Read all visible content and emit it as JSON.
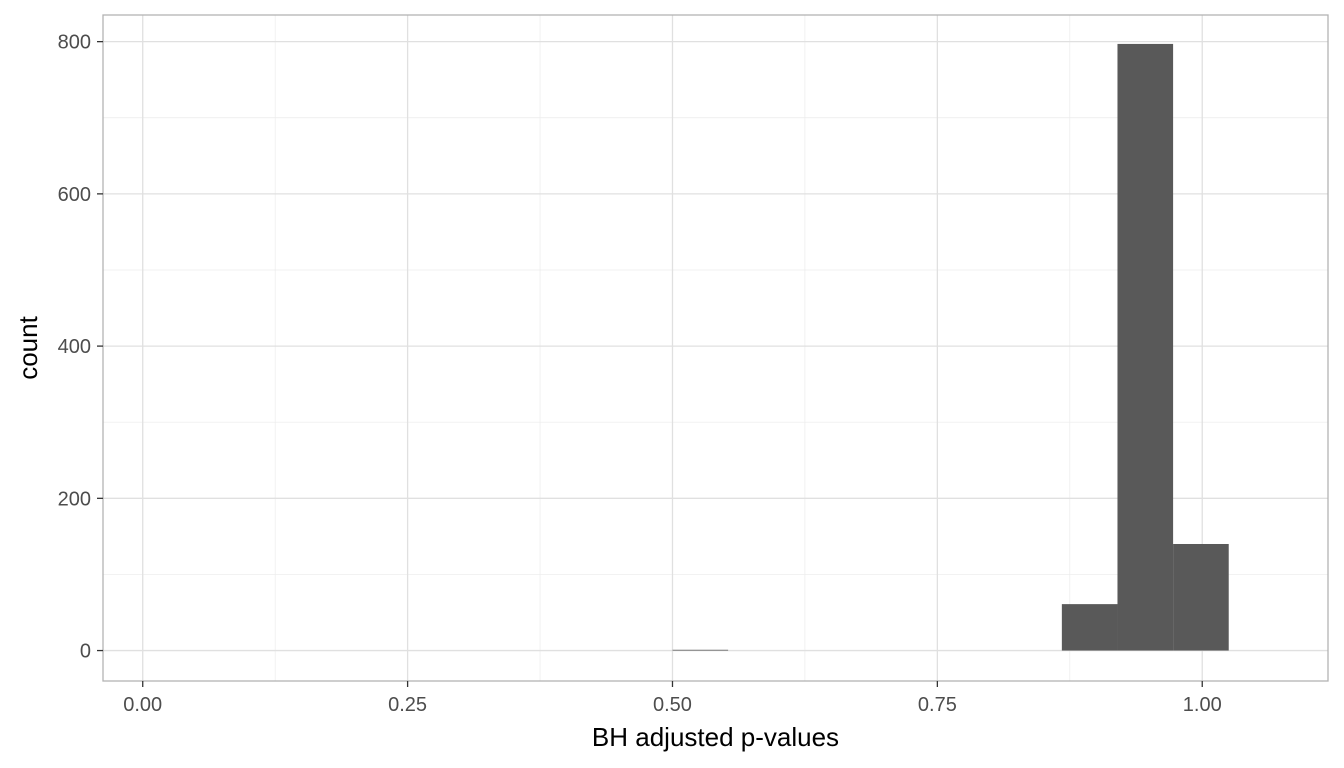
{
  "chart_data": {
    "type": "bar",
    "subtype": "histogram",
    "xlabel": "BH adjusted p-values",
    "ylabel": "count",
    "xlim": [
      -0.0375,
      1.1187
    ],
    "ylim": [
      -40,
      835
    ],
    "x_ticks": [
      0.0,
      0.25,
      0.5,
      0.75,
      1.0
    ],
    "x_tick_labels": [
      "0.00",
      "0.25",
      "0.50",
      "0.75",
      "1.00"
    ],
    "y_ticks": [
      0,
      200,
      400,
      600,
      800
    ],
    "y_tick_labels": [
      "0",
      "200",
      "400",
      "600",
      "800"
    ],
    "bins": [
      {
        "x_start": 0.5,
        "x_end": 0.5525,
        "count": 1
      },
      {
        "x_start": 0.8675,
        "x_end": 0.92,
        "count": 61
      },
      {
        "x_start": 0.92,
        "x_end": 0.9725,
        "count": 797
      },
      {
        "x_start": 0.9725,
        "x_end": 1.025,
        "count": 140
      }
    ],
    "grid": true,
    "bar_color": "#595959",
    "grid_color": "#ebebeb",
    "panel_border_color": "#b3b3b3"
  }
}
